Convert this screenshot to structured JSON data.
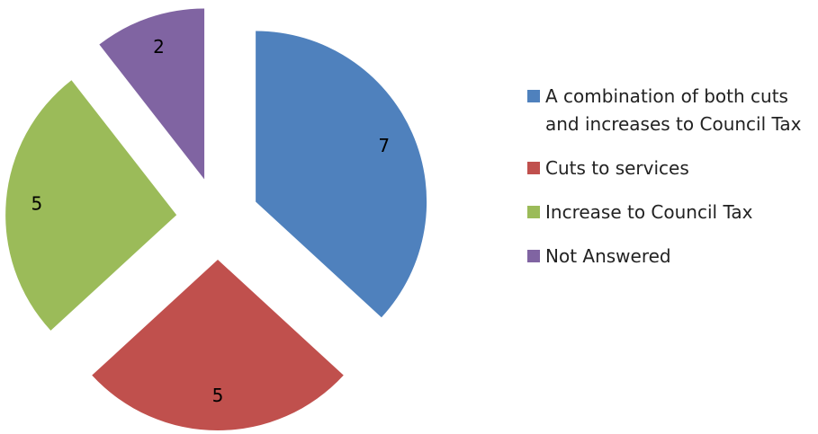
{
  "chart_data": {
    "type": "pie",
    "categories": [
      "A combination of both cuts and increases to Council Tax",
      "Cuts to services",
      "Increase to Council Tax",
      "Not Answered"
    ],
    "values": [
      7,
      5,
      5,
      2
    ],
    "colors": [
      "#4F81BD",
      "#C0504D",
      "#9BBB59",
      "#8064A2"
    ],
    "data_labels": [
      "7",
      "5",
      "5",
      "2"
    ],
    "exploded": true,
    "legend_position": "right"
  },
  "legend": {
    "items": [
      {
        "label": "A combination of both cuts and increases to Council Tax",
        "color": "#4F81BD",
        "icon": "square-swatch"
      },
      {
        "label": "Cuts to services",
        "color": "#C0504D",
        "icon": "square-swatch"
      },
      {
        "label": "Increase to Council Tax",
        "color": "#9BBB59",
        "icon": "square-swatch"
      },
      {
        "label": "Not Answered",
        "color": "#8064A2",
        "icon": "square-swatch"
      }
    ]
  }
}
